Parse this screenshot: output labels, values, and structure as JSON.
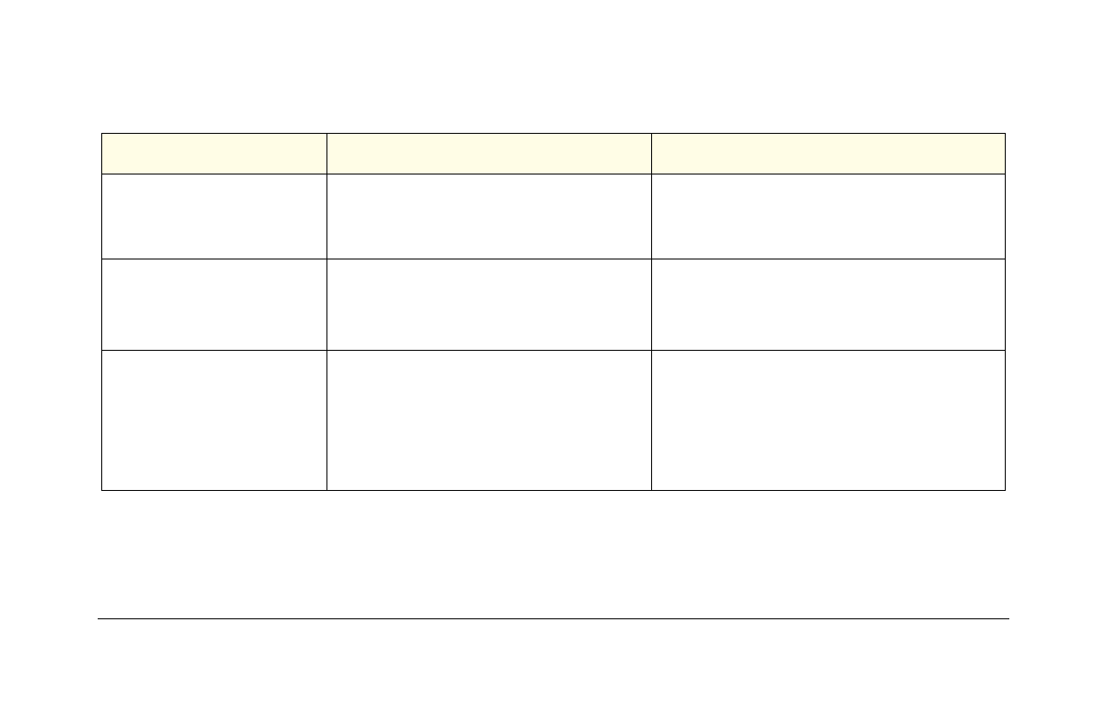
{
  "colors": {
    "header_fill": "#fffde6",
    "border": "#000000",
    "background": "#ffffff"
  },
  "table": {
    "headers": [
      "",
      "",
      ""
    ],
    "rows": [
      [
        "",
        "",
        ""
      ],
      [
        "",
        "",
        ""
      ],
      [
        "",
        "",
        ""
      ]
    ]
  }
}
